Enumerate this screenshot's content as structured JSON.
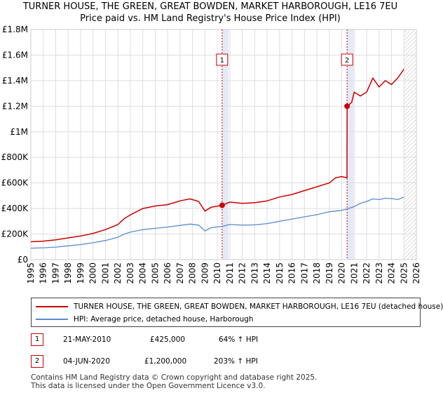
{
  "chart_data": {
    "type": "line",
    "title": "TURNER HOUSE, THE GREEN, GREAT BOWDEN, MARKET HARBOROUGH, LE16 7EU",
    "subtitle": "Price paid vs. HM Land Registry's House Price Index (HPI)",
    "xlabel": "",
    "ylabel": "",
    "xlim": [
      1995,
      2026
    ],
    "ylim": [
      0,
      1800000
    ],
    "x_ticks": [
      "1995",
      "1996",
      "1997",
      "1998",
      "1999",
      "2000",
      "2001",
      "2002",
      "2003",
      "2004",
      "2005",
      "2006",
      "2007",
      "2008",
      "2009",
      "2010",
      "2011",
      "2012",
      "2013",
      "2014",
      "2015",
      "2016",
      "2017",
      "2018",
      "2019",
      "2020",
      "2021",
      "2022",
      "2023",
      "2024",
      "2025",
      "2026"
    ],
    "y_ticks": [
      {
        "value": 0,
        "label": "£0"
      },
      {
        "value": 200000,
        "label": "£200K"
      },
      {
        "value": 400000,
        "label": "£400K"
      },
      {
        "value": 600000,
        "label": "£600K"
      },
      {
        "value": 800000,
        "label": "£800K"
      },
      {
        "value": 1000000,
        "label": "£1M"
      },
      {
        "value": 1200000,
        "label": "£1.2M"
      },
      {
        "value": 1400000,
        "label": "£1.4M"
      },
      {
        "value": 1600000,
        "label": "£1.6M"
      },
      {
        "value": 1800000,
        "label": "£1.8M"
      }
    ],
    "grid": true,
    "shaded_regions": [
      {
        "from": 2010.38,
        "to": 2010.9,
        "label": "sale 1"
      },
      {
        "from": 2020.43,
        "to": 2020.95,
        "label": "sale 2"
      },
      {
        "from": 2025.0,
        "to": 2026.0,
        "label": "forecast hatch"
      }
    ],
    "series": [
      {
        "name": "TURNER HOUSE, THE GREEN, GREAT BOWDEN, MARKET HARBOROUGH, LE16 7EU (detached house)",
        "color": "#cc0000",
        "x": [
          1995.0,
          1996.0,
          1997.0,
          1998.0,
          1999.0,
          2000.0,
          2001.0,
          2002.0,
          2002.5,
          2003.0,
          2004.0,
          2005.0,
          2006.0,
          2007.0,
          2007.8,
          2008.5,
          2009.0,
          2009.5,
          2010.38,
          2011.0,
          2012.0,
          2013.0,
          2014.0,
          2015.0,
          2016.0,
          2017.0,
          2018.0,
          2019.0,
          2019.5,
          2020.0,
          2020.42,
          2020.43,
          2020.8,
          2021.0,
          2021.5,
          2022.0,
          2022.5,
          2023.0,
          2023.5,
          2024.0,
          2024.5,
          2025.0
        ],
        "y": [
          140000,
          145000,
          155000,
          170000,
          185000,
          205000,
          235000,
          275000,
          320000,
          350000,
          400000,
          420000,
          430000,
          460000,
          475000,
          455000,
          380000,
          410000,
          425000,
          450000,
          440000,
          445000,
          460000,
          490000,
          510000,
          540000,
          570000,
          600000,
          640000,
          650000,
          640000,
          1200000,
          1230000,
          1310000,
          1280000,
          1310000,
          1420000,
          1350000,
          1400000,
          1370000,
          1420000,
          1490000
        ]
      },
      {
        "name": "HPI: Average price, detached house, Harborough",
        "color": "#5b8bd0",
        "x": [
          1995.0,
          1996.0,
          1997.0,
          1998.0,
          1999.0,
          2000.0,
          2001.0,
          2002.0,
          2002.5,
          2003.0,
          2004.0,
          2005.0,
          2006.0,
          2007.0,
          2007.8,
          2008.5,
          2009.0,
          2009.5,
          2010.38,
          2011.0,
          2012.0,
          2013.0,
          2014.0,
          2015.0,
          2016.0,
          2017.0,
          2018.0,
          2019.0,
          2020.0,
          2020.43,
          2021.0,
          2021.5,
          2022.0,
          2022.5,
          2023.0,
          2023.5,
          2024.0,
          2024.5,
          2025.0
        ],
        "y": [
          90000,
          93000,
          98000,
          108000,
          118000,
          132000,
          150000,
          175000,
          200000,
          215000,
          235000,
          245000,
          255000,
          268000,
          278000,
          270000,
          225000,
          250000,
          260000,
          275000,
          270000,
          272000,
          282000,
          300000,
          318000,
          335000,
          352000,
          375000,
          385000,
          396000,
          415000,
          440000,
          455000,
          475000,
          470000,
          480000,
          478000,
          470000,
          490000
        ]
      }
    ],
    "annotations": [
      {
        "label": "1",
        "x": 2010.38,
        "y": 425000
      },
      {
        "label": "2",
        "x": 2020.43,
        "y": 1200000
      }
    ]
  },
  "legend": {
    "items": [
      {
        "label": "TURNER HOUSE, THE GREEN, GREAT BOWDEN, MARKET HARBOROUGH, LE16 7EU (detached house)",
        "color": "#cc0000"
      },
      {
        "label": "HPI: Average price, detached house, Harborough",
        "color": "#5b8bd0"
      }
    ]
  },
  "sales": [
    {
      "num": "1",
      "date": "21-MAY-2010",
      "price": "£425,000",
      "hpi": "64% ↑ HPI"
    },
    {
      "num": "2",
      "date": "04-JUN-2020",
      "price": "£1,200,000",
      "hpi": "203% ↑ HPI"
    }
  ],
  "footer": {
    "line1": "Contains HM Land Registry data © Crown copyright and database right 2025.",
    "line2": "This data is licensed under the Open Government Licence v3.0."
  }
}
